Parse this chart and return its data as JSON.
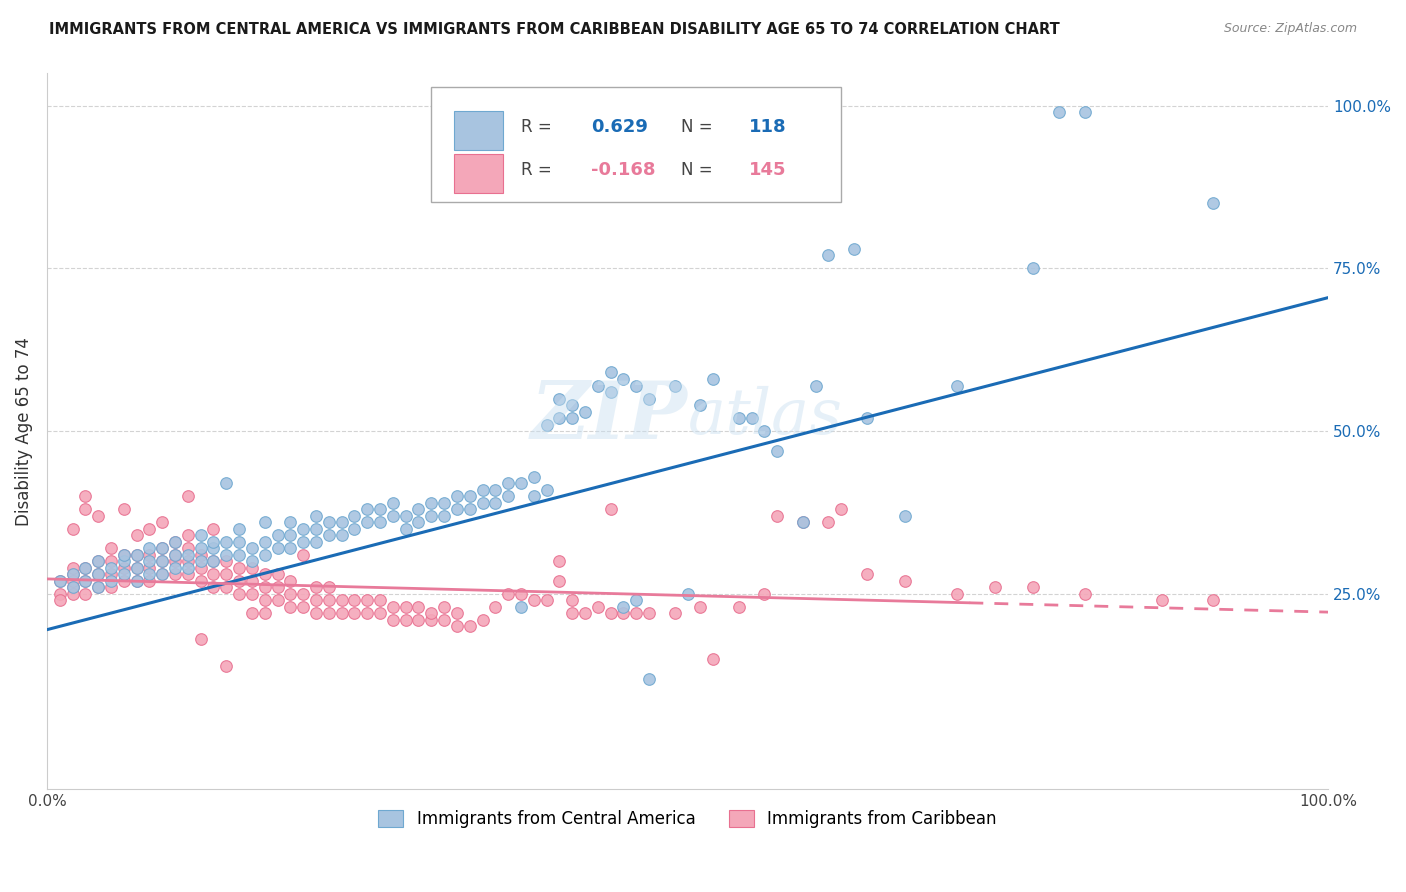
{
  "title": "IMMIGRANTS FROM CENTRAL AMERICA VS IMMIGRANTS FROM CARIBBEAN DISABILITY AGE 65 TO 74 CORRELATION CHART",
  "source": "Source: ZipAtlas.com",
  "ylabel": "Disability Age 65 to 74",
  "xlim": [
    0,
    1.0
  ],
  "ylim": [
    -0.05,
    1.05
  ],
  "blue_R": "0.629",
  "blue_N": "118",
  "pink_R": "-0.168",
  "pink_N": "145",
  "blue_color": "#a8c4e0",
  "pink_color": "#f4a7b9",
  "blue_edge_color": "#6fa8d0",
  "pink_edge_color": "#e87090",
  "blue_line_color": "#1a6bb5",
  "pink_line_color": "#e87a9a",
  "legend_label_blue": "Immigrants from Central America",
  "legend_label_pink": "Immigrants from Caribbean",
  "blue_line_y_start": 0.195,
  "blue_line_y_end": 0.705,
  "pink_line_y_start": 0.273,
  "pink_line_y_end": 0.222,
  "blue_scatter": [
    [
      0.01,
      0.27
    ],
    [
      0.02,
      0.26
    ],
    [
      0.02,
      0.28
    ],
    [
      0.03,
      0.27
    ],
    [
      0.03,
      0.29
    ],
    [
      0.04,
      0.26
    ],
    [
      0.04,
      0.28
    ],
    [
      0.04,
      0.3
    ],
    [
      0.05,
      0.27
    ],
    [
      0.05,
      0.29
    ],
    [
      0.06,
      0.28
    ],
    [
      0.06,
      0.3
    ],
    [
      0.06,
      0.31
    ],
    [
      0.07,
      0.27
    ],
    [
      0.07,
      0.29
    ],
    [
      0.07,
      0.31
    ],
    [
      0.08,
      0.28
    ],
    [
      0.08,
      0.3
    ],
    [
      0.08,
      0.32
    ],
    [
      0.09,
      0.28
    ],
    [
      0.09,
      0.3
    ],
    [
      0.09,
      0.32
    ],
    [
      0.1,
      0.29
    ],
    [
      0.1,
      0.31
    ],
    [
      0.1,
      0.33
    ],
    [
      0.11,
      0.29
    ],
    [
      0.11,
      0.31
    ],
    [
      0.12,
      0.3
    ],
    [
      0.12,
      0.32
    ],
    [
      0.12,
      0.34
    ],
    [
      0.13,
      0.3
    ],
    [
      0.13,
      0.32
    ],
    [
      0.13,
      0.33
    ],
    [
      0.14,
      0.31
    ],
    [
      0.14,
      0.33
    ],
    [
      0.14,
      0.42
    ],
    [
      0.15,
      0.31
    ],
    [
      0.15,
      0.33
    ],
    [
      0.15,
      0.35
    ],
    [
      0.16,
      0.3
    ],
    [
      0.16,
      0.32
    ],
    [
      0.17,
      0.31
    ],
    [
      0.17,
      0.33
    ],
    [
      0.17,
      0.36
    ],
    [
      0.18,
      0.32
    ],
    [
      0.18,
      0.34
    ],
    [
      0.19,
      0.32
    ],
    [
      0.19,
      0.34
    ],
    [
      0.19,
      0.36
    ],
    [
      0.2,
      0.33
    ],
    [
      0.2,
      0.35
    ],
    [
      0.21,
      0.33
    ],
    [
      0.21,
      0.35
    ],
    [
      0.21,
      0.37
    ],
    [
      0.22,
      0.34
    ],
    [
      0.22,
      0.36
    ],
    [
      0.23,
      0.34
    ],
    [
      0.23,
      0.36
    ],
    [
      0.24,
      0.35
    ],
    [
      0.24,
      0.37
    ],
    [
      0.25,
      0.36
    ],
    [
      0.25,
      0.38
    ],
    [
      0.26,
      0.36
    ],
    [
      0.26,
      0.38
    ],
    [
      0.27,
      0.37
    ],
    [
      0.27,
      0.39
    ],
    [
      0.28,
      0.35
    ],
    [
      0.28,
      0.37
    ],
    [
      0.29,
      0.36
    ],
    [
      0.29,
      0.38
    ],
    [
      0.3,
      0.37
    ],
    [
      0.3,
      0.39
    ],
    [
      0.31,
      0.37
    ],
    [
      0.31,
      0.39
    ],
    [
      0.32,
      0.38
    ],
    [
      0.32,
      0.4
    ],
    [
      0.33,
      0.38
    ],
    [
      0.33,
      0.4
    ],
    [
      0.34,
      0.39
    ],
    [
      0.34,
      0.41
    ],
    [
      0.35,
      0.39
    ],
    [
      0.35,
      0.41
    ],
    [
      0.36,
      0.4
    ],
    [
      0.36,
      0.42
    ],
    [
      0.37,
      0.23
    ],
    [
      0.37,
      0.42
    ],
    [
      0.38,
      0.4
    ],
    [
      0.38,
      0.43
    ],
    [
      0.39,
      0.41
    ],
    [
      0.39,
      0.51
    ],
    [
      0.4,
      0.52
    ],
    [
      0.4,
      0.55
    ],
    [
      0.41,
      0.52
    ],
    [
      0.41,
      0.54
    ],
    [
      0.42,
      0.53
    ],
    [
      0.43,
      0.57
    ],
    [
      0.44,
      0.56
    ],
    [
      0.44,
      0.59
    ],
    [
      0.45,
      0.23
    ],
    [
      0.45,
      0.58
    ],
    [
      0.46,
      0.24
    ],
    [
      0.46,
      0.57
    ],
    [
      0.47,
      0.12
    ],
    [
      0.47,
      0.55
    ],
    [
      0.49,
      0.57
    ],
    [
      0.5,
      0.25
    ],
    [
      0.51,
      0.54
    ],
    [
      0.52,
      0.58
    ],
    [
      0.54,
      0.52
    ],
    [
      0.55,
      0.52
    ],
    [
      0.56,
      0.5
    ],
    [
      0.57,
      0.47
    ],
    [
      0.59,
      0.36
    ],
    [
      0.6,
      0.57
    ],
    [
      0.61,
      0.77
    ],
    [
      0.63,
      0.78
    ],
    [
      0.64,
      0.52
    ],
    [
      0.67,
      0.37
    ],
    [
      0.71,
      0.57
    ],
    [
      0.77,
      0.75
    ],
    [
      0.79,
      0.99
    ],
    [
      0.81,
      0.99
    ],
    [
      0.91,
      0.85
    ]
  ],
  "pink_scatter": [
    [
      0.01,
      0.25
    ],
    [
      0.01,
      0.27
    ],
    [
      0.01,
      0.24
    ],
    [
      0.02,
      0.26
    ],
    [
      0.02,
      0.28
    ],
    [
      0.02,
      0.25
    ],
    [
      0.02,
      0.27
    ],
    [
      0.02,
      0.29
    ],
    [
      0.02,
      0.35
    ],
    [
      0.03,
      0.25
    ],
    [
      0.03,
      0.27
    ],
    [
      0.03,
      0.29
    ],
    [
      0.03,
      0.38
    ],
    [
      0.03,
      0.4
    ],
    [
      0.04,
      0.26
    ],
    [
      0.04,
      0.28
    ],
    [
      0.04,
      0.3
    ],
    [
      0.04,
      0.37
    ],
    [
      0.05,
      0.26
    ],
    [
      0.05,
      0.28
    ],
    [
      0.05,
      0.3
    ],
    [
      0.05,
      0.32
    ],
    [
      0.06,
      0.27
    ],
    [
      0.06,
      0.29
    ],
    [
      0.06,
      0.31
    ],
    [
      0.06,
      0.38
    ],
    [
      0.07,
      0.27
    ],
    [
      0.07,
      0.29
    ],
    [
      0.07,
      0.31
    ],
    [
      0.07,
      0.34
    ],
    [
      0.08,
      0.27
    ],
    [
      0.08,
      0.29
    ],
    [
      0.08,
      0.31
    ],
    [
      0.08,
      0.35
    ],
    [
      0.09,
      0.28
    ],
    [
      0.09,
      0.3
    ],
    [
      0.09,
      0.32
    ],
    [
      0.09,
      0.36
    ],
    [
      0.1,
      0.28
    ],
    [
      0.1,
      0.3
    ],
    [
      0.1,
      0.31
    ],
    [
      0.1,
      0.33
    ],
    [
      0.11,
      0.28
    ],
    [
      0.11,
      0.3
    ],
    [
      0.11,
      0.32
    ],
    [
      0.11,
      0.34
    ],
    [
      0.11,
      0.4
    ],
    [
      0.12,
      0.27
    ],
    [
      0.12,
      0.29
    ],
    [
      0.12,
      0.31
    ],
    [
      0.12,
      0.18
    ],
    [
      0.13,
      0.26
    ],
    [
      0.13,
      0.28
    ],
    [
      0.13,
      0.3
    ],
    [
      0.13,
      0.35
    ],
    [
      0.14,
      0.26
    ],
    [
      0.14,
      0.28
    ],
    [
      0.14,
      0.3
    ],
    [
      0.14,
      0.14
    ],
    [
      0.15,
      0.25
    ],
    [
      0.15,
      0.27
    ],
    [
      0.15,
      0.29
    ],
    [
      0.16,
      0.25
    ],
    [
      0.16,
      0.27
    ],
    [
      0.16,
      0.29
    ],
    [
      0.16,
      0.22
    ],
    [
      0.17,
      0.24
    ],
    [
      0.17,
      0.26
    ],
    [
      0.17,
      0.28
    ],
    [
      0.17,
      0.22
    ],
    [
      0.18,
      0.24
    ],
    [
      0.18,
      0.26
    ],
    [
      0.18,
      0.28
    ],
    [
      0.19,
      0.23
    ],
    [
      0.19,
      0.25
    ],
    [
      0.19,
      0.27
    ],
    [
      0.2,
      0.23
    ],
    [
      0.2,
      0.25
    ],
    [
      0.2,
      0.31
    ],
    [
      0.21,
      0.22
    ],
    [
      0.21,
      0.24
    ],
    [
      0.21,
      0.26
    ],
    [
      0.22,
      0.22
    ],
    [
      0.22,
      0.24
    ],
    [
      0.22,
      0.26
    ],
    [
      0.23,
      0.22
    ],
    [
      0.23,
      0.24
    ],
    [
      0.24,
      0.22
    ],
    [
      0.24,
      0.24
    ],
    [
      0.25,
      0.22
    ],
    [
      0.25,
      0.24
    ],
    [
      0.26,
      0.22
    ],
    [
      0.26,
      0.24
    ],
    [
      0.27,
      0.21
    ],
    [
      0.27,
      0.23
    ],
    [
      0.28,
      0.21
    ],
    [
      0.28,
      0.23
    ],
    [
      0.29,
      0.21
    ],
    [
      0.29,
      0.23
    ],
    [
      0.3,
      0.21
    ],
    [
      0.3,
      0.22
    ],
    [
      0.31,
      0.21
    ],
    [
      0.31,
      0.23
    ],
    [
      0.32,
      0.2
    ],
    [
      0.32,
      0.22
    ],
    [
      0.33,
      0.2
    ],
    [
      0.34,
      0.21
    ],
    [
      0.35,
      0.23
    ],
    [
      0.36,
      0.25
    ],
    [
      0.37,
      0.25
    ],
    [
      0.38,
      0.24
    ],
    [
      0.39,
      0.24
    ],
    [
      0.4,
      0.27
    ],
    [
      0.4,
      0.3
    ],
    [
      0.41,
      0.22
    ],
    [
      0.41,
      0.24
    ],
    [
      0.42,
      0.22
    ],
    [
      0.43,
      0.23
    ],
    [
      0.44,
      0.22
    ],
    [
      0.44,
      0.38
    ],
    [
      0.45,
      0.22
    ],
    [
      0.46,
      0.22
    ],
    [
      0.47,
      0.22
    ],
    [
      0.49,
      0.22
    ],
    [
      0.51,
      0.23
    ],
    [
      0.52,
      0.15
    ],
    [
      0.54,
      0.23
    ],
    [
      0.56,
      0.25
    ],
    [
      0.57,
      0.37
    ],
    [
      0.59,
      0.36
    ],
    [
      0.61,
      0.36
    ],
    [
      0.62,
      0.38
    ],
    [
      0.64,
      0.28
    ],
    [
      0.67,
      0.27
    ],
    [
      0.71,
      0.25
    ],
    [
      0.74,
      0.26
    ],
    [
      0.77,
      0.26
    ],
    [
      0.81,
      0.25
    ],
    [
      0.87,
      0.24
    ],
    [
      0.91,
      0.24
    ]
  ]
}
